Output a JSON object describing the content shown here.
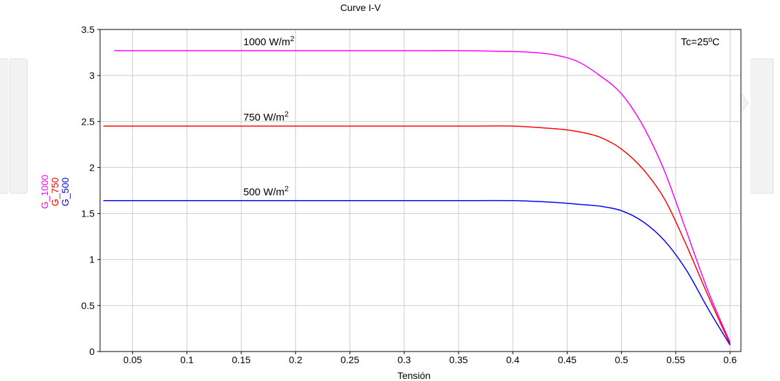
{
  "chart_data": {
    "type": "line",
    "title": "Curve I-V",
    "xlabel": "Tensión",
    "ylabels": [
      {
        "text": "G_1000",
        "color": "#ff00ff"
      },
      {
        "text": "G_750",
        "color": "#ff0000"
      },
      {
        "text": "G_500",
        "color": "#0000ff"
      }
    ],
    "xlim": [
      0.02,
      0.61
    ],
    "ylim": [
      0,
      3.5
    ],
    "xticks": [
      "0.05",
      "0.1",
      "0.15",
      "0.2",
      "0.25",
      "0.3",
      "0.35",
      "0.4",
      "0.45",
      "0.5",
      "0.55",
      "0.6"
    ],
    "yticks": [
      "0",
      "0.5",
      "1",
      "1.5",
      "2",
      "2.5",
      "3",
      "3.5"
    ],
    "grid": true,
    "annotation": "Tc=25ºC",
    "series": [
      {
        "name": "G_1000",
        "label": "1000 W/m",
        "label_sup": "2",
        "color": "#ff00ff",
        "x": [
          0.033,
          0.1,
          0.2,
          0.3,
          0.35,
          0.4,
          0.42,
          0.44,
          0.46,
          0.48,
          0.5,
          0.52,
          0.54,
          0.56,
          0.58,
          0.6
        ],
        "y": [
          3.27,
          3.27,
          3.27,
          3.27,
          3.27,
          3.26,
          3.25,
          3.22,
          3.15,
          3.0,
          2.8,
          2.45,
          1.95,
          1.3,
          0.65,
          0.1
        ]
      },
      {
        "name": "G_750",
        "label": "750 W/m",
        "label_sup": "2",
        "color": "#ff0000",
        "x": [
          0.023,
          0.1,
          0.2,
          0.3,
          0.36,
          0.4,
          0.44,
          0.46,
          0.48,
          0.5,
          0.52,
          0.54,
          0.56,
          0.58,
          0.6
        ],
        "y": [
          2.45,
          2.45,
          2.45,
          2.45,
          2.45,
          2.45,
          2.42,
          2.39,
          2.33,
          2.2,
          1.98,
          1.65,
          1.15,
          0.6,
          0.08
        ]
      },
      {
        "name": "G_500",
        "label": "500 W/m",
        "label_sup": "2",
        "color": "#0000ff",
        "x": [
          0.023,
          0.1,
          0.2,
          0.3,
          0.35,
          0.4,
          0.44,
          0.46,
          0.48,
          0.5,
          0.52,
          0.54,
          0.56,
          0.58,
          0.6
        ],
        "y": [
          1.64,
          1.64,
          1.64,
          1.64,
          1.64,
          1.64,
          1.62,
          1.6,
          1.58,
          1.53,
          1.41,
          1.2,
          0.88,
          0.46,
          0.07
        ]
      }
    ]
  }
}
